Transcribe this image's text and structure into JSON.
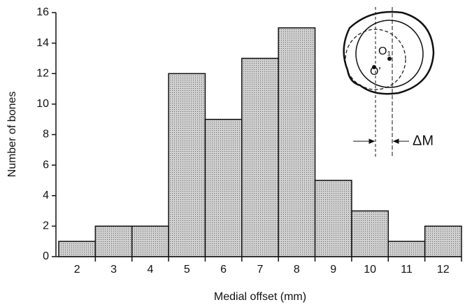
{
  "chart_data": {
    "type": "bar",
    "x_label": "Medial offset (mm)",
    "y_label": "Number of bones",
    "categories": [
      "2",
      "3",
      "4",
      "5",
      "6",
      "7",
      "8",
      "9",
      "10",
      "11",
      "12"
    ],
    "values": [
      1,
      2,
      2,
      12,
      9,
      13,
      15,
      5,
      3,
      1,
      2
    ],
    "color": "#c4c4c4",
    "ylim": [
      0,
      16
    ],
    "yticks": [
      0,
      2,
      4,
      6,
      8,
      10,
      12,
      14,
      16
    ],
    "grid": false,
    "annotations": [
      "O₁",
      "O'",
      "ΔM"
    ]
  }
}
